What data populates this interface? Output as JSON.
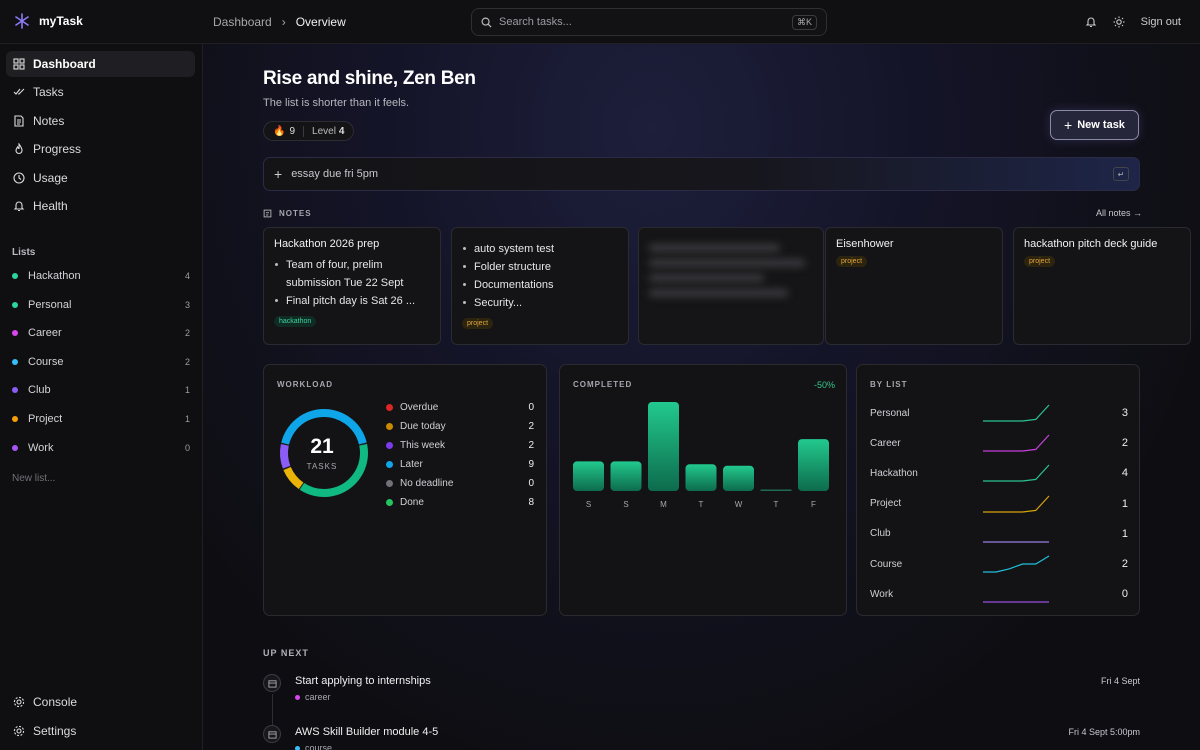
{
  "app": {
    "name": "myTask"
  },
  "breadcrumb": {
    "parent": "Dashboard",
    "current": "Overview"
  },
  "search": {
    "placeholder": "Search tasks...",
    "shortcut": "⌘K"
  },
  "topbar": {
    "signout": "Sign out"
  },
  "sidebar": {
    "nav": [
      {
        "label": "Dashboard",
        "icon": "grid-icon",
        "active": true
      },
      {
        "label": "Tasks",
        "icon": "check-double-icon"
      },
      {
        "label": "Notes",
        "icon": "note-icon"
      },
      {
        "label": "Progress",
        "icon": "flame-icon"
      },
      {
        "label": "Usage",
        "icon": "clock-icon"
      },
      {
        "label": "Health",
        "icon": "bell-icon"
      }
    ],
    "lists_heading": "Lists",
    "lists": [
      {
        "label": "Hackathon",
        "count": "4",
        "color": "#2dd4a0"
      },
      {
        "label": "Personal",
        "count": "3",
        "color": "#2dd4a0"
      },
      {
        "label": "Career",
        "count": "2",
        "color": "#d946ef"
      },
      {
        "label": "Course",
        "count": "2",
        "color": "#38bdf8"
      },
      {
        "label": "Club",
        "count": "1",
        "color": "#8b5cf6"
      },
      {
        "label": "Project",
        "count": "1",
        "color": "#f59e0b"
      },
      {
        "label": "Work",
        "count": "0",
        "color": "#a855f7"
      }
    ],
    "new_list": "New list...",
    "bottom": [
      {
        "label": "Console",
        "icon": "gear-icon"
      },
      {
        "label": "Settings",
        "icon": "settings-icon"
      }
    ]
  },
  "header": {
    "greeting": "Rise and shine, Zen Ben",
    "subtitle": "The list is shorter than it feels.",
    "streak": "9",
    "level_label": "Level",
    "level_value": "4",
    "new_task": "New task"
  },
  "quick_add": {
    "placeholder": "essay due fri 5pm"
  },
  "notes": {
    "heading": "NOTES",
    "all_link": "All notes →",
    "items": [
      {
        "title": "Hackathon 2026 prep",
        "bullets": [
          "Team of four, prelim submission Tue 22 Sept",
          "Final pitch day is Sat 26 ..."
        ],
        "tag": "hackathon",
        "tag_type": "hack"
      },
      {
        "title": "",
        "bullets": [
          "auto system test",
          "Folder structure",
          "Documentations",
          "Security..."
        ],
        "tag": "project",
        "tag_type": "proj"
      },
      {
        "title": "",
        "bullets": [],
        "tag": "",
        "blurred": true
      },
      {
        "title": "Eisenhower",
        "bullets": [],
        "tag": "project",
        "tag_type": "proj"
      },
      {
        "title": "hackathon pitch deck guide",
        "bullets": [],
        "tag": "project",
        "tag_type": "proj"
      }
    ]
  },
  "workload": {
    "heading": "WORKLOAD",
    "total": "21",
    "total_label": "TASKS",
    "items": [
      {
        "label": "Overdue",
        "value": 0,
        "color": "#dc2626"
      },
      {
        "label": "Due today",
        "value": 2,
        "color": "#ca8a04"
      },
      {
        "label": "This week",
        "value": 2,
        "color": "#7c3aed"
      },
      {
        "label": "Later",
        "value": 9,
        "color": "#0ea5e9"
      },
      {
        "label": "No deadline",
        "value": 0,
        "color": "#71717a"
      },
      {
        "label": "Done",
        "value": 8,
        "color": "#22c55e"
      }
    ],
    "donut_colors": [
      "#eab308",
      "#8b5cf6",
      "#0ea5e9",
      "#10b981"
    ]
  },
  "completed": {
    "heading": "COMPLETED",
    "change": "-50%",
    "color": "#10b981"
  },
  "chart_data": {
    "type": "bar",
    "categories": [
      "S",
      "S",
      "M",
      "T",
      "W",
      "T",
      "F"
    ],
    "values": [
      2,
      2,
      6,
      1.8,
      1.7,
      0,
      3.5
    ]
  },
  "by_list": {
    "heading": "BY LIST",
    "items": [
      {
        "label": "Personal",
        "value": "3",
        "color": "#2dd4a0",
        "shape": [
          0,
          0,
          0,
          0,
          0.1,
          1
        ]
      },
      {
        "label": "Career",
        "value": "2",
        "color": "#d946ef",
        "shape": [
          0,
          0,
          0,
          0,
          0.1,
          1
        ]
      },
      {
        "label": "Hackathon",
        "value": "4",
        "color": "#2dd4a0",
        "shape": [
          0,
          0,
          0,
          0,
          0.1,
          1
        ]
      },
      {
        "label": "Project",
        "value": "1",
        "color": "#eab308",
        "shape": [
          0,
          0,
          0,
          0,
          0.1,
          1
        ]
      },
      {
        "label": "Club",
        "value": "1",
        "color": "#a78bfa",
        "shape": [
          0,
          0,
          0,
          0,
          0,
          0
        ]
      },
      {
        "label": "Course",
        "value": "2",
        "color": "#22d3ee",
        "shape": [
          0,
          0,
          0.2,
          0.5,
          0.5,
          1
        ]
      },
      {
        "label": "Work",
        "value": "0",
        "color": "#a855f7",
        "shape": [
          0,
          0,
          0,
          0,
          0,
          0
        ]
      }
    ]
  },
  "up_next": {
    "heading": "UP NEXT",
    "items": [
      {
        "title": "Start applying to internships",
        "tag": "career",
        "tag_color": "#d946ef",
        "date": "Fri 4 Sept"
      },
      {
        "title": "AWS Skill Builder module 4-5",
        "tag": "course",
        "tag_color": "#38bdf8",
        "date": "Fri 4 Sept 5:00pm"
      }
    ]
  }
}
